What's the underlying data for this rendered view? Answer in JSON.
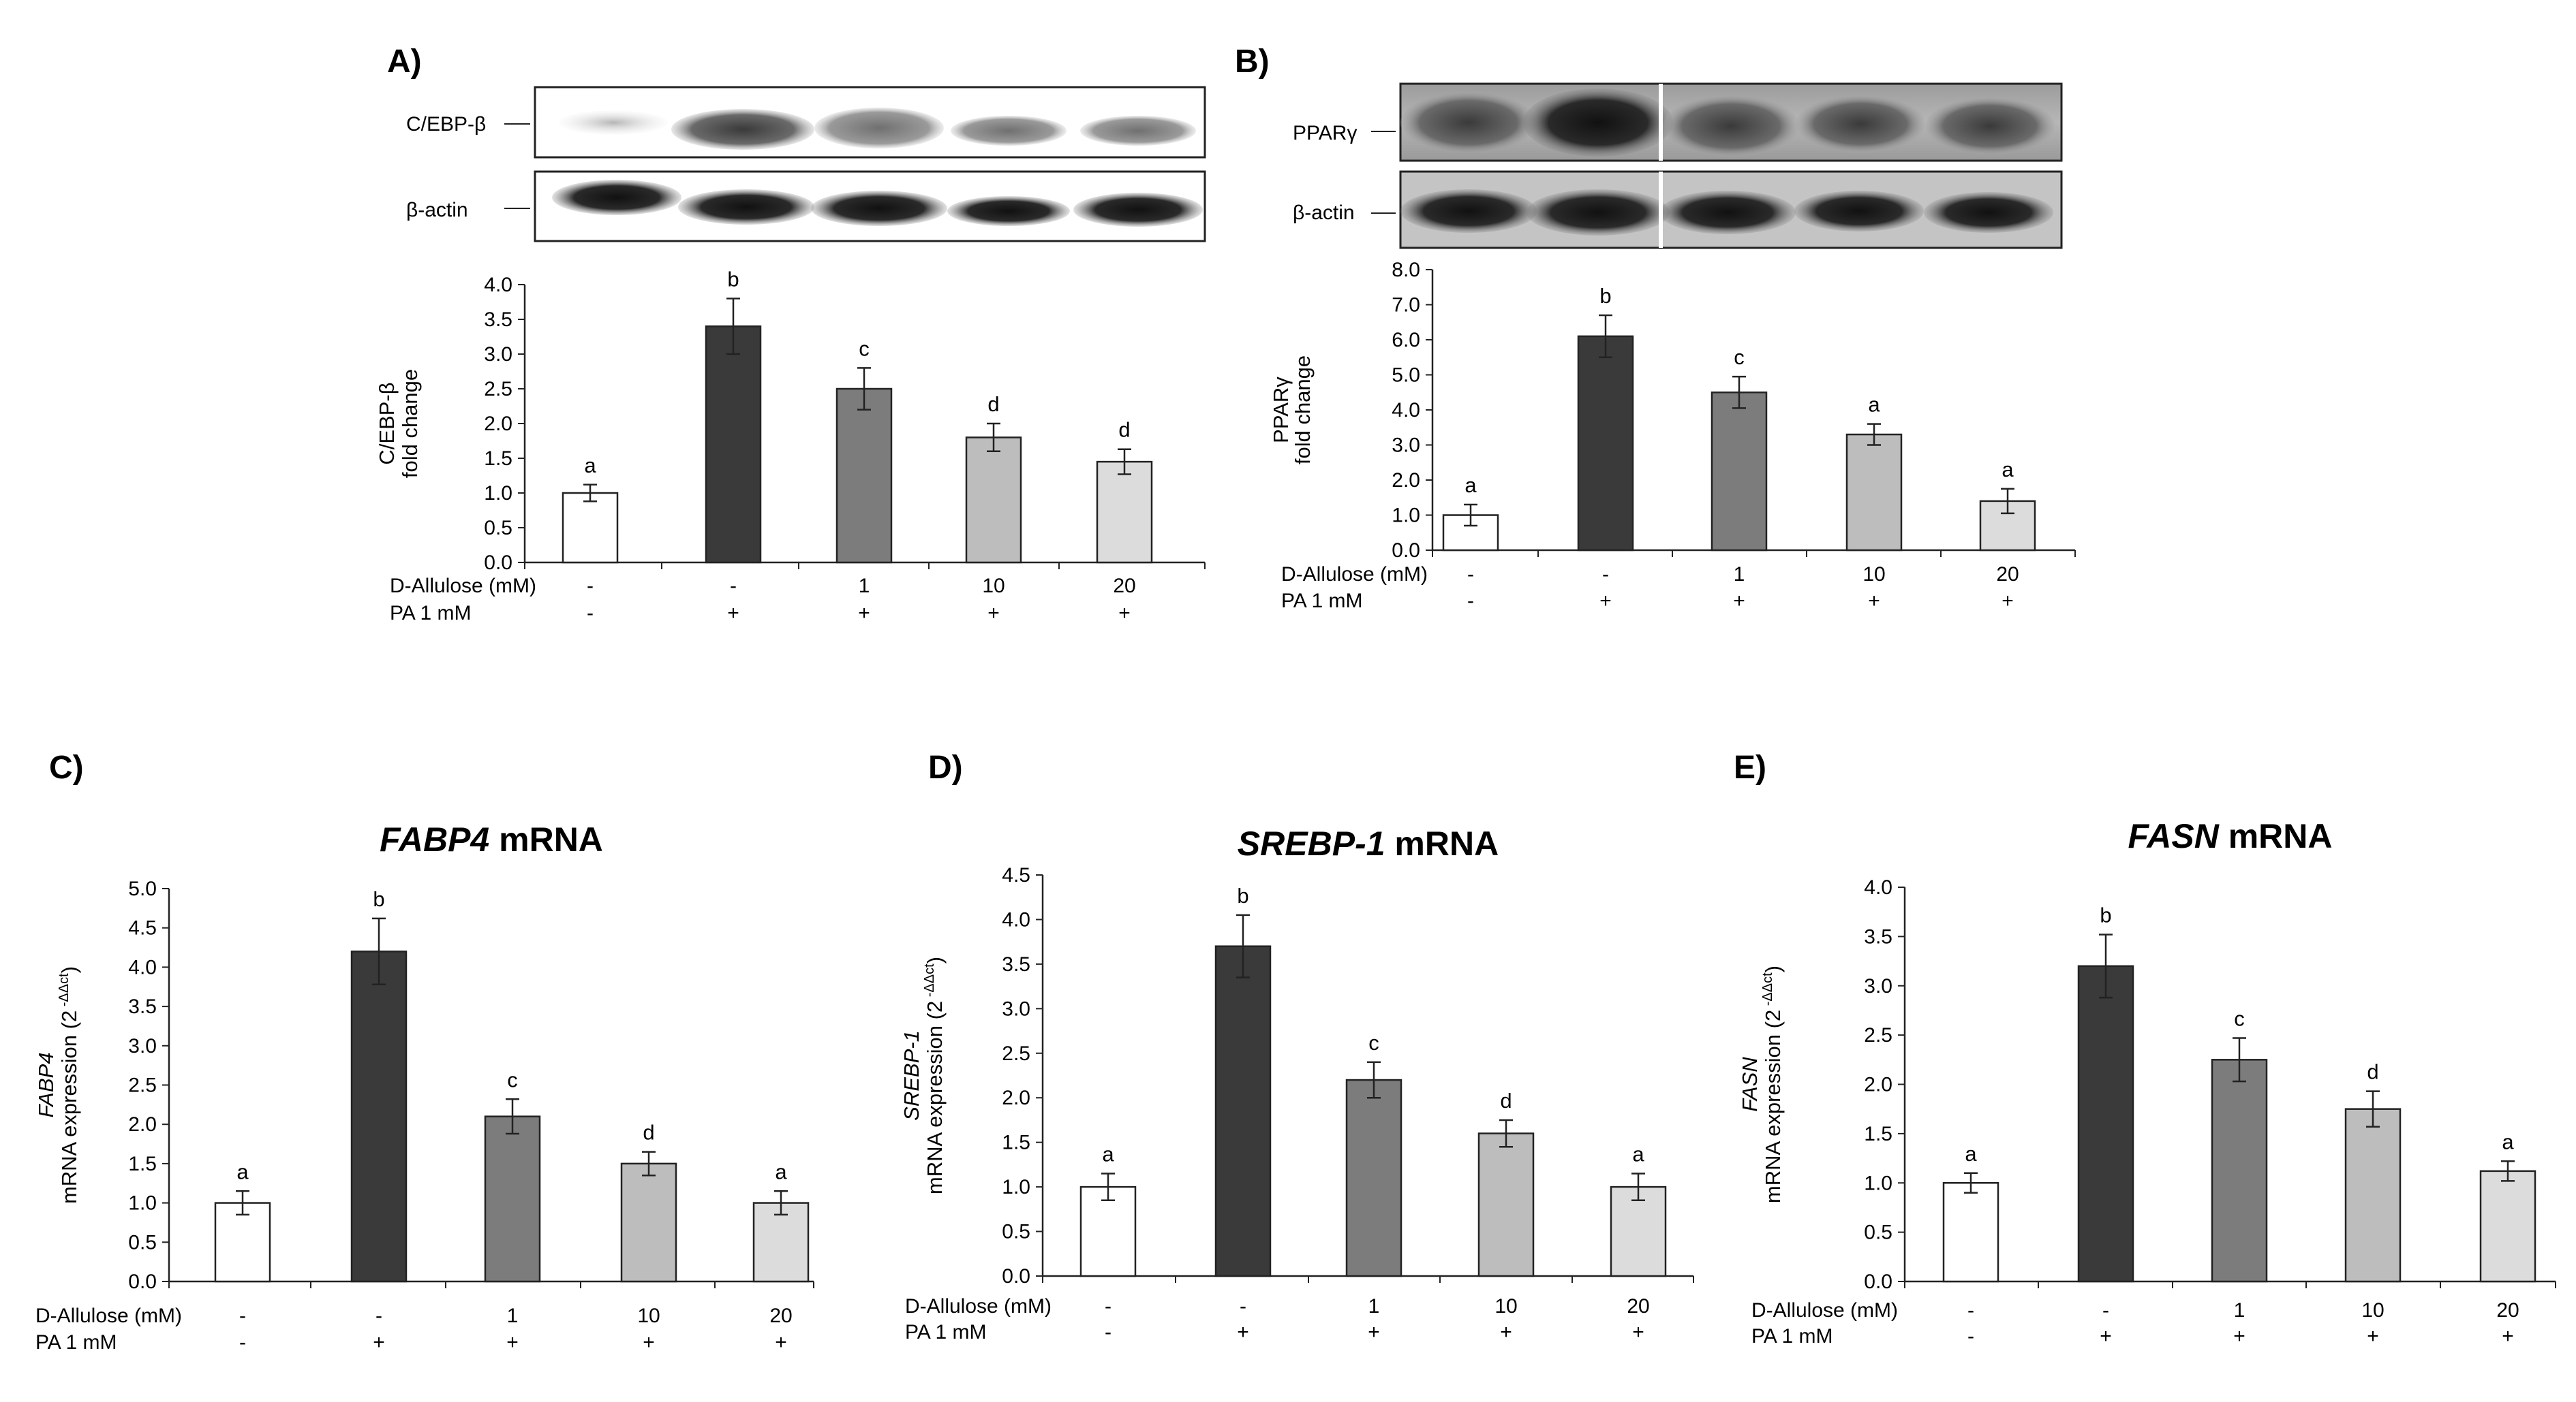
{
  "condition_labels": {
    "allulose_row": "D-Allulose (mM)",
    "pa_row": "PA 1 mM",
    "allulose": [
      "-",
      "-",
      "1",
      "10",
      "20"
    ],
    "pa": [
      "-",
      "+",
      "+",
      "+",
      "+"
    ]
  },
  "blots": {
    "A": {
      "protein_label": "C/EBP-β",
      "loading_label": "β-actin"
    },
    "B": {
      "protein_label": "PPARγ",
      "loading_label": "β-actin"
    }
  },
  "bar_colors": [
    "#ffffff",
    "#3a3a3a",
    "#7c7c7c",
    "#bdbdbd",
    "#dcdcdc"
  ],
  "chart_data": [
    {
      "id": "A",
      "panel_label": "A)",
      "type": "bar",
      "title": "",
      "ylabel_lines": [
        "C/EBP-β",
        "fold change"
      ],
      "ylim": [
        0,
        4.0
      ],
      "yticks": [
        0.0,
        0.5,
        1.0,
        1.5,
        2.0,
        2.5,
        3.0,
        3.5,
        4.0
      ],
      "values": [
        1.0,
        3.4,
        2.5,
        1.8,
        1.45
      ],
      "errors": [
        0.12,
        0.4,
        0.3,
        0.2,
        0.18
      ],
      "sig_letters": [
        "a",
        "b",
        "c",
        "d",
        "d"
      ]
    },
    {
      "id": "B",
      "panel_label": "B)",
      "type": "bar",
      "title": "",
      "ylabel_lines": [
        "PPARγ",
        "fold change"
      ],
      "ylim": [
        0,
        8.0
      ],
      "yticks": [
        0.0,
        1.0,
        2.0,
        3.0,
        4.0,
        5.0,
        6.0,
        7.0,
        8.0
      ],
      "values": [
        1.0,
        6.1,
        4.5,
        3.3,
        1.4
      ],
      "errors": [
        0.3,
        0.6,
        0.45,
        0.3,
        0.35
      ],
      "sig_letters": [
        "a",
        "b",
        "c",
        "a",
        "a"
      ]
    },
    {
      "id": "C",
      "panel_label": "C)",
      "type": "bar",
      "title": "FABP4 mRNA",
      "ylabel_lines": [
        "FABP4",
        "mRNA expression (2"
      ],
      "ylabel_sup": "-ΔΔct",
      "ylim": [
        0,
        5.0
      ],
      "yticks": [
        0.0,
        0.5,
        1.0,
        1.5,
        2.0,
        2.5,
        3.0,
        3.5,
        4.0,
        4.5,
        5.0
      ],
      "values": [
        1.0,
        4.2,
        2.1,
        1.5,
        1.0
      ],
      "errors": [
        0.15,
        0.42,
        0.22,
        0.15,
        0.15
      ],
      "sig_letters": [
        "a",
        "b",
        "c",
        "d",
        "a"
      ]
    },
    {
      "id": "D",
      "panel_label": "D)",
      "type": "bar",
      "title": "SREBP-1 mRNA",
      "ylabel_lines": [
        "SREBP-1",
        "mRNA expression (2"
      ],
      "ylabel_sup": "-ΔΔct",
      "ylim": [
        0,
        4.5
      ],
      "yticks": [
        0.0,
        0.5,
        1.0,
        1.5,
        2.0,
        2.5,
        3.0,
        3.5,
        4.0,
        4.5
      ],
      "values": [
        1.0,
        3.7,
        2.2,
        1.6,
        1.0
      ],
      "errors": [
        0.15,
        0.35,
        0.2,
        0.15,
        0.15
      ],
      "sig_letters": [
        "a",
        "b",
        "c",
        "d",
        "a"
      ]
    },
    {
      "id": "E",
      "panel_label": "E)",
      "type": "bar",
      "title": "FASN mRNA",
      "ylabel_lines": [
        "FASN",
        "mRNA expression (2"
      ],
      "ylabel_sup": "-ΔΔct",
      "ylim": [
        0,
        4.0
      ],
      "yticks": [
        0.0,
        0.5,
        1.0,
        1.5,
        2.0,
        2.5,
        3.0,
        3.5,
        4.0
      ],
      "values": [
        1.0,
        3.2,
        2.25,
        1.75,
        1.12
      ],
      "errors": [
        0.1,
        0.32,
        0.22,
        0.18,
        0.1
      ],
      "sig_letters": [
        "a",
        "b",
        "c",
        "d",
        "a"
      ]
    }
  ]
}
